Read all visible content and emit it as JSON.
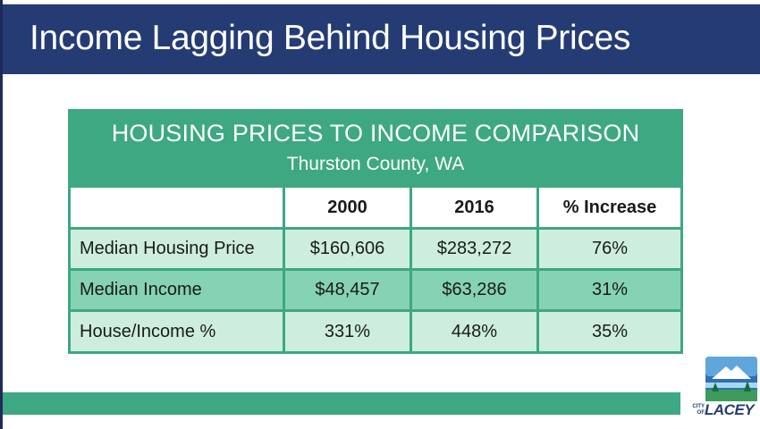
{
  "slide": {
    "title": "Income Lagging Behind Housing Prices"
  },
  "table": {
    "title": "HOUSING PRICES TO INCOME COMPARISON",
    "subtitle": "Thurston County, WA",
    "columns": [
      "",
      "2000",
      "2016",
      "% Increase"
    ],
    "rows": [
      [
        "Median Housing Price",
        "$160,606",
        "$283,272",
        "76%"
      ],
      [
        "Median Income",
        "$48,457",
        "$63,286",
        "31%"
      ],
      [
        "House/Income %",
        "331%",
        "448%",
        "35%"
      ]
    ]
  },
  "logo": {
    "small_text_1": "CITY",
    "small_text_2": "OF",
    "word": "LACEY"
  },
  "colors": {
    "title_bar": "#253b74",
    "table_green": "#3da882",
    "row_light": "#cdeedd",
    "row_mid": "#85d3b3"
  }
}
